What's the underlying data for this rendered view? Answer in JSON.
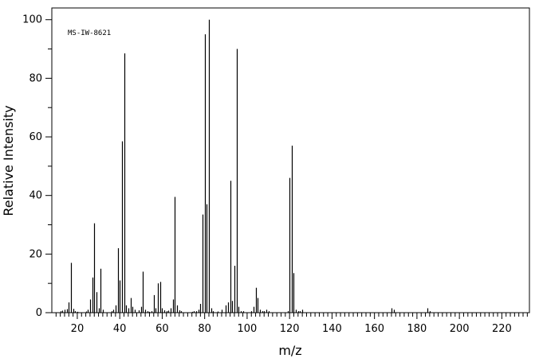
{
  "chart_data": {
    "type": "bar",
    "title": "",
    "annotation": "MS-IW-8621",
    "xlabel": "m/z",
    "ylabel": "Relative Intensity",
    "xlim": [
      8,
      233
    ],
    "ylim": [
      0,
      104
    ],
    "xticks": [
      20,
      40,
      60,
      80,
      100,
      120,
      140,
      160,
      180,
      200,
      220
    ],
    "yticks": [
      0,
      20,
      40,
      60,
      80,
      100
    ],
    "grid": false,
    "legend": "none",
    "color": "#000000",
    "series": [
      {
        "x": [
          12,
          13,
          14,
          15,
          16,
          17,
          18,
          19,
          20,
          24,
          25,
          26,
          27,
          28,
          29,
          30,
          31,
          32,
          36,
          37,
          38,
          39,
          40,
          41,
          42,
          43,
          44,
          45,
          46,
          47,
          49,
          50,
          51,
          52,
          53,
          54,
          55,
          56,
          57,
          58,
          59,
          60,
          61,
          62,
          63,
          64,
          65,
          66,
          67,
          68,
          69,
          74,
          75,
          76,
          77,
          78,
          79,
          80,
          81,
          82,
          83,
          84,
          86,
          88,
          90,
          91,
          92,
          93,
          94,
          95,
          96,
          97,
          98,
          102,
          103,
          104,
          105,
          106,
          107,
          108,
          109,
          110,
          119,
          120,
          121,
          122,
          123,
          124,
          125,
          126,
          168,
          169,
          185,
          186
        ],
        "y": [
          0.5,
          0.7,
          1.0,
          1.2,
          3.5,
          17.0,
          1.3,
          0.5,
          0.3,
          0.4,
          1.0,
          4.5,
          12.0,
          30.5,
          7.0,
          1.5,
          15.0,
          1.0,
          0.5,
          1.0,
          2.5,
          22.0,
          11.0,
          58.5,
          88.5,
          2.5,
          1.5,
          5.0,
          2.0,
          1.0,
          0.8,
          2.0,
          14.0,
          1.0,
          0.5,
          0.3,
          0.5,
          6.0,
          1.5,
          10.0,
          10.5,
          1.5,
          0.8,
          0.5,
          0.7,
          1.5,
          4.5,
          39.5,
          2.5,
          0.8,
          0.5,
          0.3,
          0.5,
          0.5,
          1.0,
          3.0,
          33.5,
          95.0,
          37.0,
          100.0,
          1.5,
          0.5,
          0.4,
          1.0,
          2.5,
          3.5,
          45.0,
          4.0,
          16.0,
          90.0,
          2.0,
          0.5,
          0.5,
          0.5,
          2.0,
          8.5,
          5.0,
          1.0,
          0.5,
          0.5,
          1.0,
          0.5,
          0.5,
          46.0,
          57.0,
          13.5,
          1.0,
          0.5,
          0.5,
          1.0,
          1.5,
          1.0,
          1.5,
          0.5
        ]
      }
    ]
  }
}
